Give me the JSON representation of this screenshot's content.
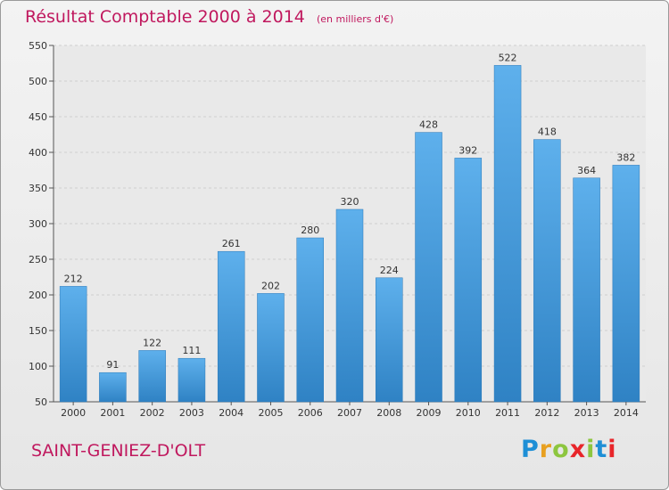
{
  "title": "Résultat Comptable 2000 à 2014",
  "subtitle": "(en milliers d'€)",
  "location": "SAINT-GENIEZ-D'OLT",
  "logo": {
    "letters": [
      "P",
      "r",
      "o",
      "x",
      "i",
      "t",
      "i"
    ],
    "colors": [
      "#1e8fd6",
      "#e8a020",
      "#8dc63f",
      "#e8252a",
      "#8dc63f",
      "#1e8fd6",
      "#e8252a"
    ]
  },
  "colors": {
    "bar": "#4a9ede",
    "title": "#c0185e"
  },
  "chart_data": {
    "type": "bar",
    "categories": [
      "2000",
      "2001",
      "2002",
      "2003",
      "2004",
      "2005",
      "2006",
      "2007",
      "2008",
      "2009",
      "2010",
      "2011",
      "2012",
      "2013",
      "2014"
    ],
    "values": [
      212,
      91,
      122,
      111,
      261,
      202,
      280,
      320,
      224,
      428,
      392,
      522,
      418,
      364,
      382
    ],
    "data_labels": [
      "212",
      "91",
      "122",
      "111",
      "261",
      "202",
      "280",
      "320",
      "224",
      "428",
      "392",
      "522",
      "418",
      "364",
      "382"
    ],
    "title": "Résultat Comptable 2000 à 2014",
    "xlabel": "",
    "ylabel": "",
    "ylim": [
      50,
      550
    ],
    "yticks": [
      50,
      100,
      150,
      200,
      250,
      300,
      350,
      400,
      450,
      500,
      550
    ],
    "grid": true
  }
}
